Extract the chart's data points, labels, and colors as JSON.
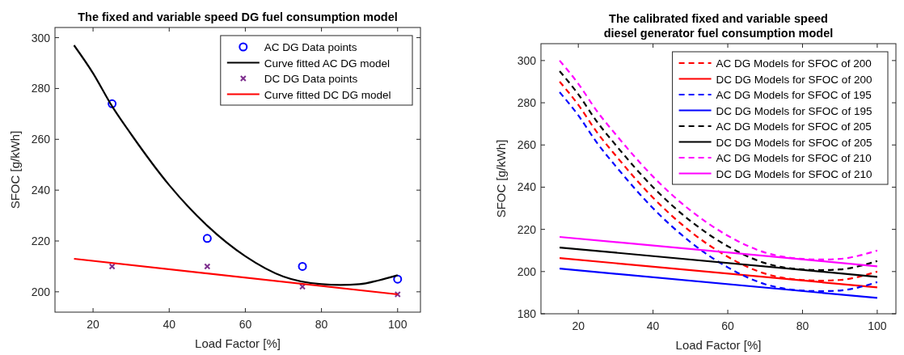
{
  "chart_data": [
    {
      "type": "line",
      "title": "The fixed and variable speed DG fuel consumption model",
      "xlabel": "Load Factor [%]",
      "ylabel": "SFOC [g/kWh]",
      "xlim": [
        10,
        106
      ],
      "ylim": [
        192,
        304
      ],
      "xticks": [
        20,
        40,
        60,
        80,
        100
      ],
      "yticks": [
        200,
        220,
        240,
        260,
        280,
        300
      ],
      "grid": false,
      "legend": "top right",
      "series": [
        {
          "name": "AC DG Data points",
          "type": "scatter",
          "color": "#0000ff",
          "marker": "circle",
          "x": [
            25,
            50,
            75,
            100
          ],
          "values": [
            274,
            221,
            210,
            205
          ]
        },
        {
          "name": "Curve fitted AC DG model",
          "type": "line",
          "color": "#000000",
          "marker": "none",
          "line_style": "solid",
          "x": [
            15,
            20,
            25,
            30,
            40,
            50,
            60,
            70,
            80,
            85,
            90,
            95,
            100
          ],
          "values": [
            297,
            286,
            273,
            262,
            242,
            226,
            214,
            206,
            203,
            202.7,
            203,
            204.5,
            206.5
          ]
        },
        {
          "name": "DC DG Data points",
          "type": "scatter",
          "color": "#7e2f8e",
          "marker": "cross",
          "x": [
            25,
            50,
            75,
            100
          ],
          "values": [
            210,
            210,
            202,
            199
          ]
        },
        {
          "name": "Curve fitted DC DG model",
          "type": "line",
          "color": "#ff0000",
          "marker": "none",
          "line_style": "solid",
          "x": [
            15,
            100
          ],
          "values": [
            213,
            199
          ]
        }
      ]
    },
    {
      "type": "line",
      "title": "The calibrated fixed and variable speed\ndiesel generator fuel consumption model",
      "xlabel": "Load Factor [%]",
      "ylabel": "SFOC [g/kWh]",
      "xlim": [
        10,
        105
      ],
      "ylim": [
        180,
        308
      ],
      "xticks": [
        20,
        40,
        60,
        80,
        100
      ],
      "yticks": [
        180,
        200,
        220,
        240,
        260,
        280,
        300
      ],
      "grid": false,
      "legend": "top right",
      "marker": "none",
      "series": [
        {
          "name": "AC DG Models for SFOC of 200",
          "color": "#ff0000",
          "line_style": "dashed",
          "x": [
            15,
            20,
            25,
            30,
            40,
            50,
            60,
            70,
            80,
            85,
            90,
            95,
            100
          ],
          "values": [
            290,
            279,
            266,
            255,
            235,
            219,
            207,
            199,
            196,
            195.7,
            196,
            197.5,
            200
          ]
        },
        {
          "name": "DC DG Models for SFOC of 200",
          "color": "#ff0000",
          "line_style": "solid",
          "x": [
            15,
            100
          ],
          "values": [
            206.4,
            192.5
          ]
        },
        {
          "name": "AC DG Models for SFOC of 195",
          "color": "#0000ff",
          "line_style": "dashed",
          "x": [
            15,
            20,
            25,
            30,
            40,
            50,
            60,
            70,
            80,
            85,
            90,
            95,
            100
          ],
          "values": [
            285,
            274,
            261,
            250,
            230,
            214,
            202,
            194,
            191,
            190.7,
            191,
            192.5,
            195
          ]
        },
        {
          "name": "DC DG Models for SFOC of 195",
          "color": "#0000ff",
          "line_style": "solid",
          "x": [
            15,
            100
          ],
          "values": [
            201.4,
            187.5
          ]
        },
        {
          "name": "AC DG Models for SFOC of 205",
          "color": "#000000",
          "line_style": "dashed",
          "x": [
            15,
            20,
            25,
            30,
            40,
            50,
            60,
            70,
            80,
            85,
            90,
            95,
            100
          ],
          "values": [
            295,
            284,
            271,
            260,
            240,
            224,
            212,
            204,
            201,
            200.7,
            201,
            202.5,
            205
          ]
        },
        {
          "name": "DC DG Models for SFOC of 205",
          "color": "#000000",
          "line_style": "solid",
          "x": [
            15,
            100
          ],
          "values": [
            211.4,
            197.5
          ]
        },
        {
          "name": "AC DG Models for SFOC of 210",
          "color": "#ff00ff",
          "line_style": "dashed",
          "x": [
            15,
            20,
            25,
            30,
            40,
            50,
            60,
            70,
            80,
            85,
            90,
            95,
            100
          ],
          "values": [
            300,
            289,
            276,
            265,
            245,
            229,
            217,
            209,
            206,
            205.7,
            206,
            207.5,
            210
          ]
        },
        {
          "name": "DC DG Models for SFOC of 210",
          "color": "#ff00ff",
          "line_style": "solid",
          "x": [
            15,
            100
          ],
          "values": [
            216.4,
            202.5
          ]
        }
      ]
    }
  ]
}
